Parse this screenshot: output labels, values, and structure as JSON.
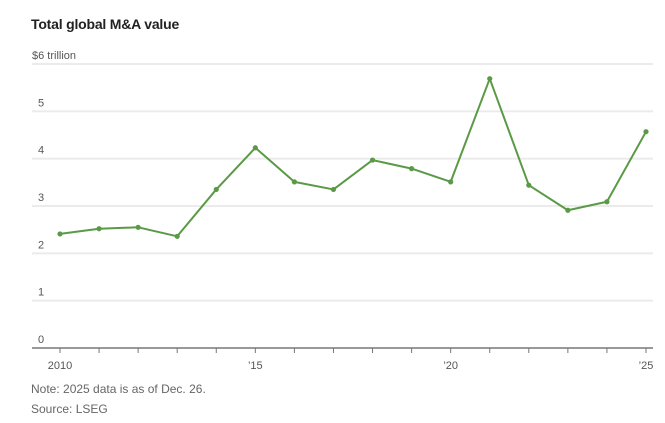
{
  "chart_data": {
    "type": "line",
    "title": "Total global M&A value",
    "ylabel": "$6 trillion",
    "xlabel": "",
    "x": [
      2010,
      2011,
      2012,
      2013,
      2014,
      2015,
      2016,
      2017,
      2018,
      2019,
      2020,
      2021,
      2022,
      2023,
      2024,
      2025
    ],
    "series": [
      {
        "name": "Total global M&A value",
        "color": "#5a9a46",
        "values": [
          2.41,
          2.52,
          2.55,
          2.36,
          3.35,
          4.23,
          3.51,
          3.35,
          3.97,
          3.79,
          3.51,
          5.69,
          3.44,
          2.91,
          3.09,
          4.57
        ]
      }
    ],
    "ylim": [
      0,
      6
    ],
    "xlim": [
      2010,
      2025
    ],
    "y_ticks": [
      {
        "value": 0,
        "label": "0"
      },
      {
        "value": 1,
        "label": "1"
      },
      {
        "value": 2,
        "label": "2"
      },
      {
        "value": 3,
        "label": "3"
      },
      {
        "value": 4,
        "label": "4"
      },
      {
        "value": 5,
        "label": "5"
      },
      {
        "value": 6,
        "label": "$6 trillion"
      }
    ],
    "x_ticks": [
      {
        "value": 2010,
        "label": "2010"
      },
      {
        "value": 2015,
        "label": "’15"
      },
      {
        "value": 2020,
        "label": "’20"
      },
      {
        "value": 2025,
        "label": "’25"
      }
    ],
    "grid": true,
    "legend": "none"
  },
  "footer": {
    "note": "Note: 2025 data is as of Dec. 26.",
    "source": "Source: LSEG"
  }
}
